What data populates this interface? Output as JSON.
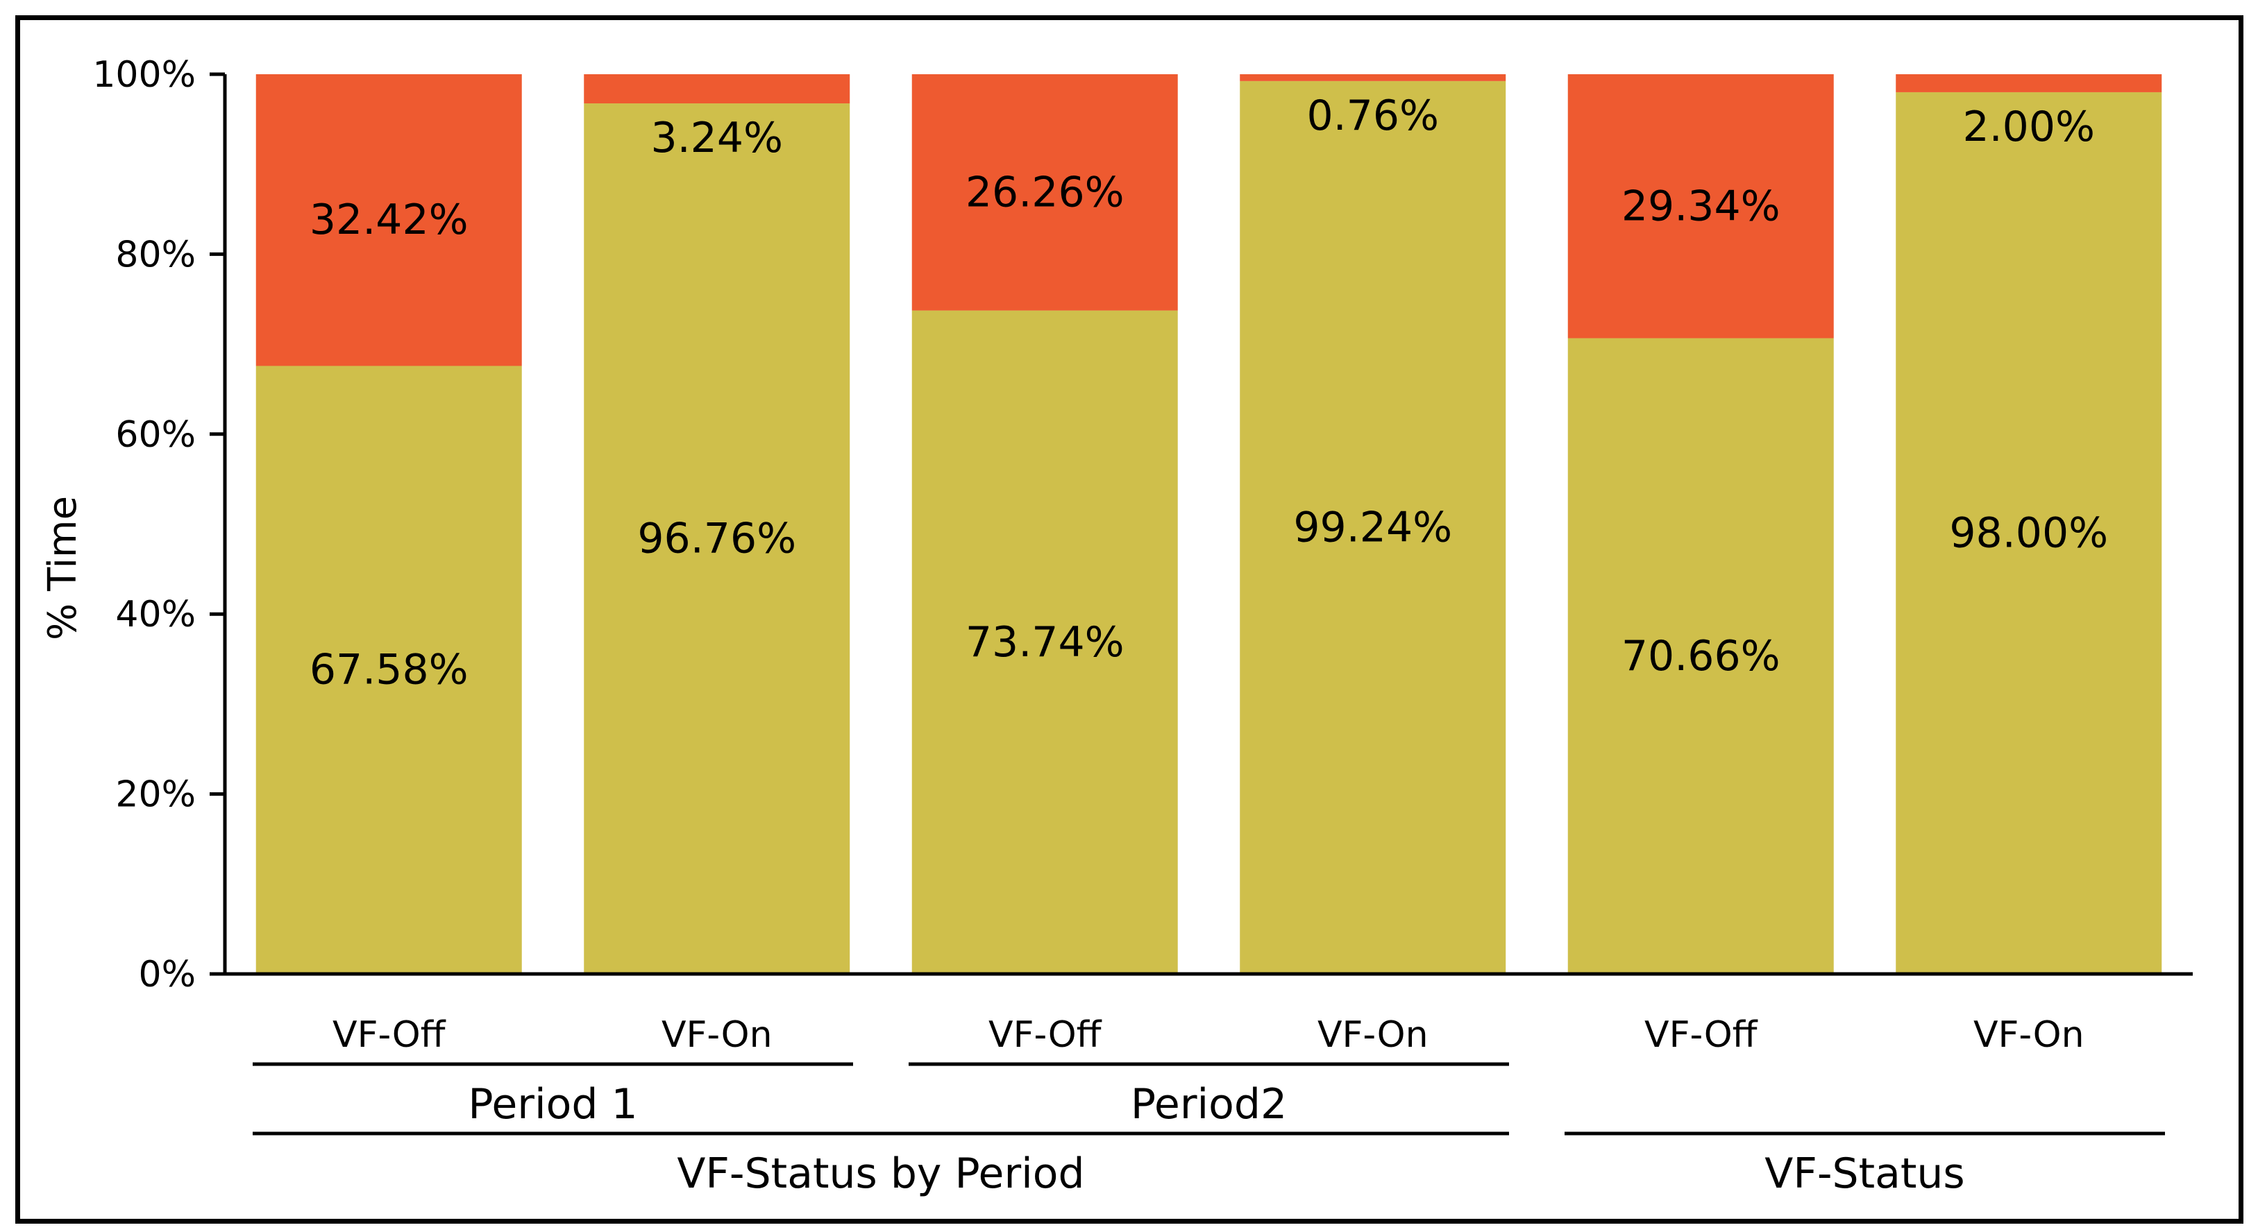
{
  "chart_data": {
    "type": "bar",
    "stacked": true,
    "percent_stacked": true,
    "title": "",
    "xlabel": "",
    "ylabel": "% Time",
    "ylim": [
      0,
      100
    ],
    "yticks": [
      "0%",
      "20%",
      "40%",
      "60%",
      "80%",
      "100%"
    ],
    "grid": false,
    "legend": "none",
    "categories": [
      "VF-Off",
      "VF-On",
      "VF-Off",
      "VF-On",
      "VF-Off",
      "VF-On"
    ],
    "series": [
      {
        "name": "lower",
        "color": "#CFBF4B",
        "values": [
          67.58,
          96.76,
          73.74,
          99.24,
          70.66,
          98.0
        ],
        "labels": [
          "67.58%",
          "96.76%",
          "73.74%",
          "99.24%",
          "70.66%",
          "98.00%"
        ]
      },
      {
        "name": "upper",
        "color": "#EE5A30",
        "values": [
          32.42,
          3.24,
          26.26,
          0.76,
          29.34,
          2.0
        ],
        "labels": [
          "32.42%",
          "3.24%",
          "26.26%",
          "0.76%",
          "29.34%",
          "2.00%"
        ]
      }
    ],
    "group_levels": [
      [
        {
          "label": "Period 1",
          "span": [
            0,
            1
          ]
        },
        {
          "label": "Period2",
          "span": [
            2,
            3
          ]
        }
      ],
      [
        {
          "label": "VF-Status by Period",
          "span": [
            0,
            3
          ]
        },
        {
          "label": "VF-Status",
          "span": [
            4,
            5
          ]
        }
      ]
    ]
  }
}
